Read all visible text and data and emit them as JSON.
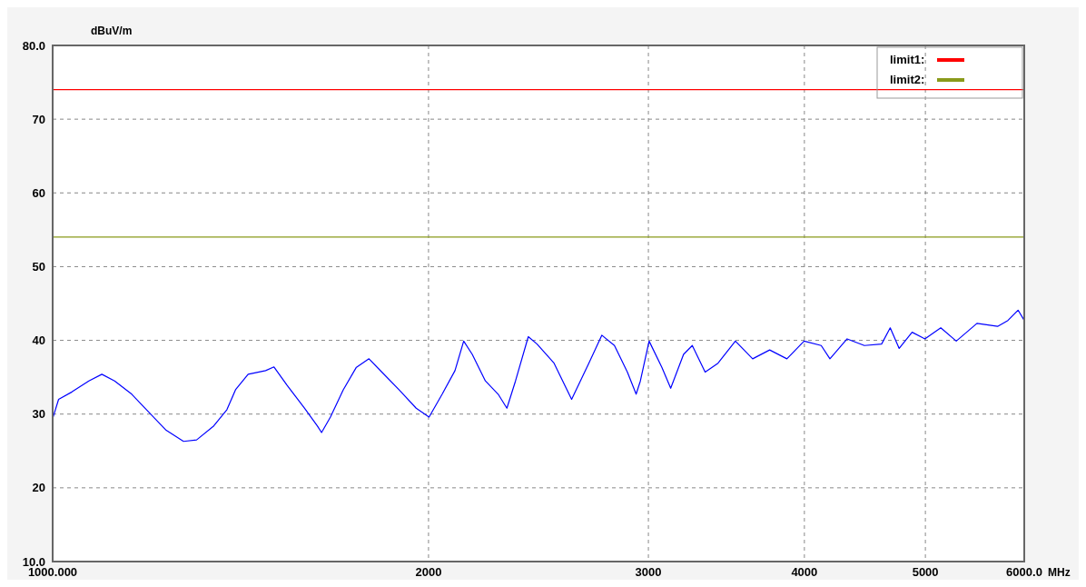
{
  "chart_data": {
    "type": "line",
    "xlabel": "MHz",
    "ylabel": "dBuV/m",
    "log": "x",
    "grid": true,
    "legend": "top right",
    "xlim": [
      1000,
      6000
    ],
    "ylim": [
      10,
      80
    ],
    "xticks": [
      {
        "value": 1000,
        "label": "1000.000"
      },
      2000,
      3000,
      4000,
      5000,
      {
        "value": 6000,
        "label": "6000.0"
      }
    ],
    "yticks": [
      {
        "value": 10,
        "label": "10.0"
      },
      20,
      30,
      40,
      50,
      60,
      70,
      {
        "value": 80,
        "label": "80.0"
      }
    ],
    "series": [
      {
        "name": "limit1:",
        "color": "#ff0000",
        "x": [
          1000,
          6000
        ],
        "values": [
          74,
          74
        ]
      },
      {
        "name": "limit2:",
        "color": "#8a9a1a",
        "x": [
          1000,
          6000
        ],
        "values": [
          54,
          54
        ]
      },
      {
        "color": "#0000ff",
        "x": [
          1000,
          1011,
          1036,
          1069,
          1095,
          1121,
          1157,
          1195,
          1233,
          1273,
          1304,
          1346,
          1379,
          1401,
          1434,
          1481,
          1504,
          1541,
          1591,
          1629,
          1642,
          1669,
          1709,
          1750,
          1792,
          1835,
          1894,
          1955,
          2002,
          2051,
          2100,
          2134,
          2168,
          2221,
          2274,
          2311,
          2348,
          2404,
          2443,
          2521,
          2604,
          2688,
          2753,
          2818,
          2886,
          2933,
          2956,
          3004,
          3076,
          3126,
          3201,
          3253,
          3331,
          3411,
          3522,
          3636,
          3752,
          3873,
          3998,
          4126,
          4193,
          4328,
          4468,
          4612,
          4686,
          4764,
          4879,
          4995,
          5144,
          5293,
          5499,
          5712,
          5822,
          5932,
          6000
        ],
        "values": [
          29.4,
          32.0,
          33.0,
          34.5,
          35.4,
          34.5,
          32.7,
          30.2,
          27.8,
          26.3,
          26.5,
          28.4,
          30.6,
          33.3,
          35.4,
          35.9,
          36.4,
          33.9,
          30.8,
          28.4,
          27.5,
          29.6,
          33.3,
          36.3,
          37.5,
          35.7,
          33.3,
          30.8,
          29.6,
          32.7,
          35.9,
          39.9,
          38.1,
          34.5,
          32.7,
          30.8,
          34.5,
          40.5,
          39.5,
          36.9,
          32.0,
          36.9,
          40.7,
          39.3,
          35.7,
          32.7,
          34.5,
          39.9,
          36.3,
          33.5,
          38.1,
          39.3,
          35.7,
          36.9,
          39.9,
          37.5,
          38.7,
          37.5,
          39.9,
          39.3,
          37.5,
          40.2,
          39.3,
          39.5,
          41.7,
          38.9,
          41.1,
          40.2,
          41.7,
          39.9,
          42.3,
          41.9,
          42.7,
          44.1,
          42.7
        ]
      }
    ]
  }
}
